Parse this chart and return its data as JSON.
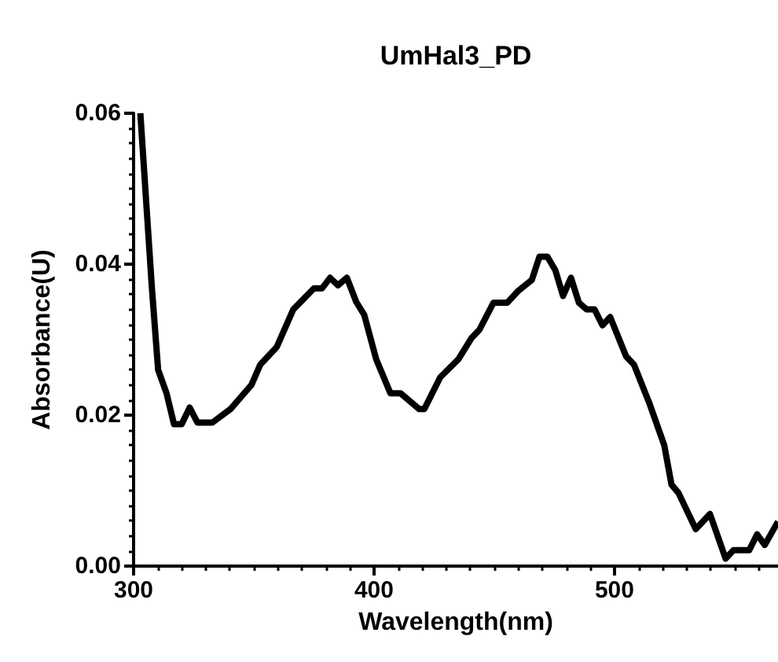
{
  "chart_data": {
    "type": "line",
    "title": "UmHal3_PD",
    "xlabel": "Wavelength(nm)",
    "ylabel": "Absorbance(U)",
    "xlim": [
      300,
      568
    ],
    "xticks": [
      300,
      400,
      500
    ],
    "ylim": [
      0,
      0.06
    ],
    "yticks": [
      {
        "value": 0,
        "label": "0.00"
      },
      {
        "value": 0.02,
        "label": "0.02"
      },
      {
        "value": 0.04,
        "label": "0.04"
      },
      {
        "value": 0.06,
        "label": "0.06"
      }
    ],
    "grid": false,
    "marker": "none",
    "line_style": "solid",
    "series": [
      {
        "color": "#000000",
        "x": [
          302.8,
          307.6,
          310.2,
          313.7,
          316.8,
          320,
          323.3,
          326.6,
          332.7,
          340.3,
          349,
          352.7,
          359.5,
          366.4,
          375,
          378.4,
          381.7,
          385,
          388.7,
          392.6,
          395.9,
          400.9,
          406.8,
          411,
          418.8,
          420.9,
          427.5,
          435.1,
          440.5,
          443.8,
          449.7,
          455.4,
          460.1,
          465.6,
          468.8,
          472.1,
          475.4,
          478.6,
          481.9,
          485.2,
          488.4,
          491.7,
          495,
          498.2,
          504.8,
          508.1,
          514.6,
          520.7,
          523.7,
          526.6,
          533.8,
          539.7,
          546.2,
          549.5,
          556,
          559.3,
          562.5,
          568
        ],
        "values": [
          0.06,
          0.0369,
          0.026,
          0.0229,
          0.0188,
          0.0188,
          0.021,
          0.019,
          0.019,
          0.0208,
          0.024,
          0.0267,
          0.029,
          0.034,
          0.0368,
          0.0368,
          0.0382,
          0.0372,
          0.0382,
          0.035,
          0.0333,
          0.0274,
          0.0229,
          0.0229,
          0.0208,
          0.0208,
          0.025,
          0.0274,
          0.0302,
          0.0313,
          0.0349,
          0.0349,
          0.0365,
          0.0379,
          0.041,
          0.041,
          0.0392,
          0.0358,
          0.0382,
          0.0349,
          0.034,
          0.034,
          0.0319,
          0.033,
          0.0278,
          0.0267,
          0.0215,
          0.016,
          0.0108,
          0.0097,
          0.0049,
          0.0069,
          0.001,
          0.0021,
          0.0021,
          0.0042,
          0.0028,
          0.0059
        ]
      }
    ]
  }
}
